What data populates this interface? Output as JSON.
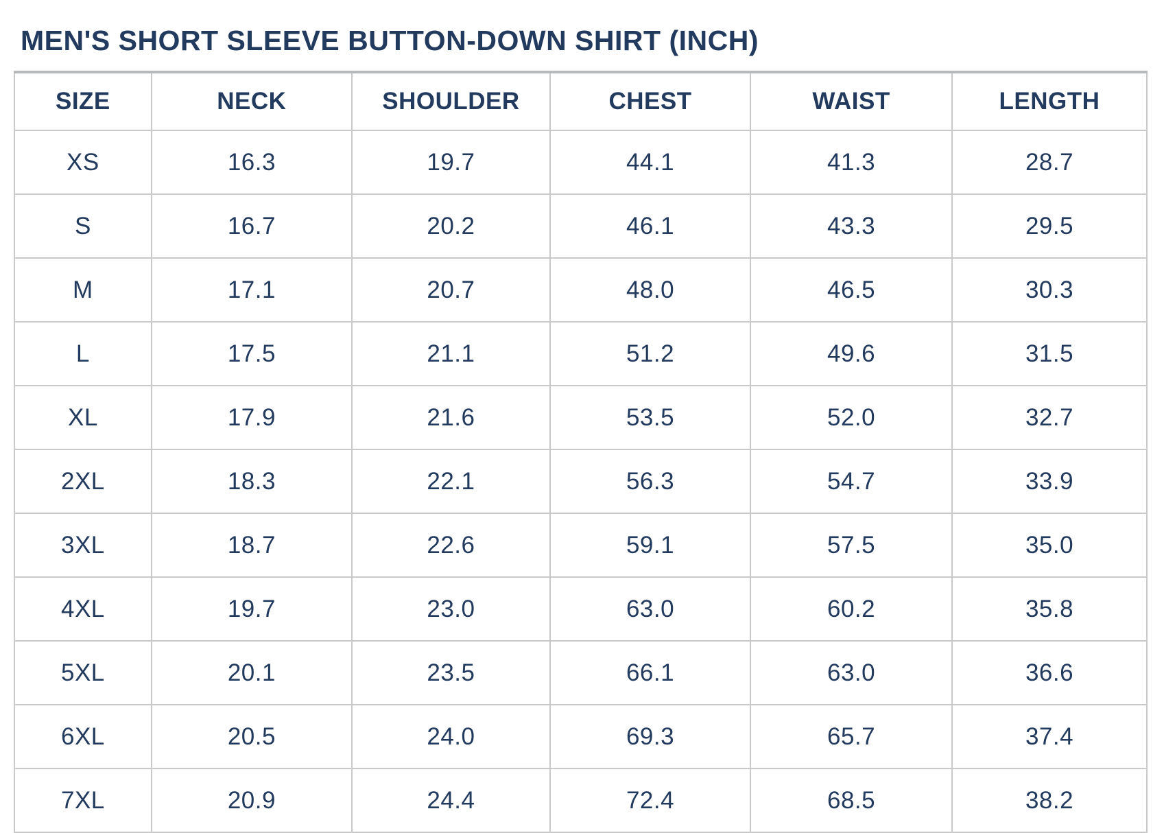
{
  "page": {
    "title": "MEN'S SHORT SLEEVE BUTTON-DOWN SHIRT (INCH)"
  },
  "colors": {
    "text_navy": "#223a5e",
    "grid_border": "#c9c9c9",
    "top_border": "#b6babc",
    "background": "#ffffff"
  },
  "chart_data": {
    "type": "table",
    "title": "MEN'S SHORT SLEEVE BUTTON-DOWN SHIRT (INCH)",
    "unit": "inch",
    "columns": [
      "SIZE",
      "NECK",
      "SHOULDER",
      "CHEST",
      "WAIST",
      "LENGTH"
    ],
    "rows": [
      [
        "XS",
        "16.3",
        "19.7",
        "44.1",
        "41.3",
        "28.7"
      ],
      [
        "S",
        "16.7",
        "20.2",
        "46.1",
        "43.3",
        "29.5"
      ],
      [
        "M",
        "17.1",
        "20.7",
        "48.0",
        "46.5",
        "30.3"
      ],
      [
        "L",
        "17.5",
        "21.1",
        "51.2",
        "49.6",
        "31.5"
      ],
      [
        "XL",
        "17.9",
        "21.6",
        "53.5",
        "52.0",
        "32.7"
      ],
      [
        "2XL",
        "18.3",
        "22.1",
        "56.3",
        "54.7",
        "33.9"
      ],
      [
        "3XL",
        "18.7",
        "22.6",
        "59.1",
        "57.5",
        "35.0"
      ],
      [
        "4XL",
        "19.7",
        "23.0",
        "63.0",
        "60.2",
        "35.8"
      ],
      [
        "5XL",
        "20.1",
        "23.5",
        "66.1",
        "63.0",
        "36.6"
      ],
      [
        "6XL",
        "20.5",
        "24.0",
        "69.3",
        "65.7",
        "37.4"
      ],
      [
        "7XL",
        "20.9",
        "24.4",
        "72.4",
        "68.5",
        "38.2"
      ]
    ]
  }
}
